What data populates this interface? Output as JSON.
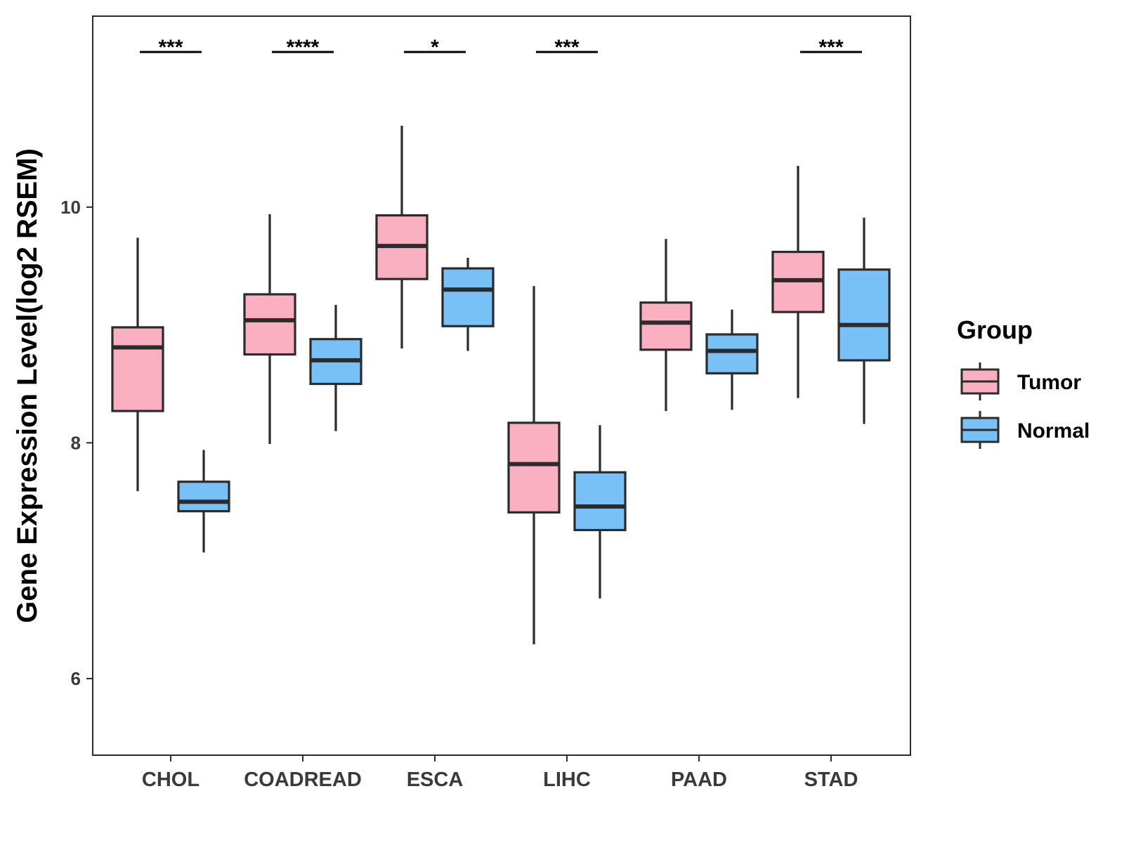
{
  "chart_data": {
    "type": "boxplot",
    "title": "",
    "xlabel": "",
    "ylabel": "Gene Expression Level(log2 RSEM)",
    "ylim": [
      5.35,
      11.62
    ],
    "yticks": [
      6,
      8,
      10
    ],
    "grid": false,
    "categories": [
      "CHOL",
      "COADREAD",
      "ESCA",
      "LIHC",
      "PAAD",
      "STAD"
    ],
    "series": [
      {
        "name": "Tumor",
        "color": "#fbb0c2",
        "boxes": [
          {
            "min": 7.59,
            "q1": 8.27,
            "median": 8.81,
            "q3": 8.98,
            "max": 9.74
          },
          {
            "min": 7.99,
            "q1": 8.75,
            "median": 9.04,
            "q3": 9.26,
            "max": 9.94
          },
          {
            "min": 8.8,
            "q1": 9.39,
            "median": 9.67,
            "q3": 9.93,
            "max": 10.69
          },
          {
            "min": 6.29,
            "q1": 7.41,
            "median": 7.82,
            "q3": 8.17,
            "max": 9.33
          },
          {
            "min": 8.27,
            "q1": 8.79,
            "median": 9.02,
            "q3": 9.19,
            "max": 9.73
          },
          {
            "min": 8.38,
            "q1": 9.11,
            "median": 9.38,
            "q3": 9.62,
            "max": 10.35
          }
        ]
      },
      {
        "name": "Normal",
        "color": "#78c1f7",
        "boxes": [
          {
            "min": 7.07,
            "q1": 7.42,
            "median": 7.5,
            "q3": 7.67,
            "max": 7.94
          },
          {
            "min": 8.1,
            "q1": 8.5,
            "median": 8.7,
            "q3": 8.88,
            "max": 9.17
          },
          {
            "min": 8.78,
            "q1": 8.99,
            "median": 9.3,
            "q3": 9.48,
            "max": 9.57
          },
          {
            "min": 6.68,
            "q1": 7.26,
            "median": 7.46,
            "q3": 7.75,
            "max": 8.15
          },
          {
            "min": 8.28,
            "q1": 8.59,
            "median": 8.78,
            "q3": 8.92,
            "max": 9.13
          },
          {
            "min": 8.16,
            "q1": 8.7,
            "median": 9.0,
            "q3": 9.47,
            "max": 9.91
          }
        ]
      }
    ],
    "significance": [
      "***",
      "****",
      "*",
      "***",
      "",
      "***"
    ],
    "legend": {
      "title": "Group",
      "position": "right",
      "entries": [
        "Tumor",
        "Normal"
      ]
    },
    "box_edge_color": "#2b2b2b"
  }
}
